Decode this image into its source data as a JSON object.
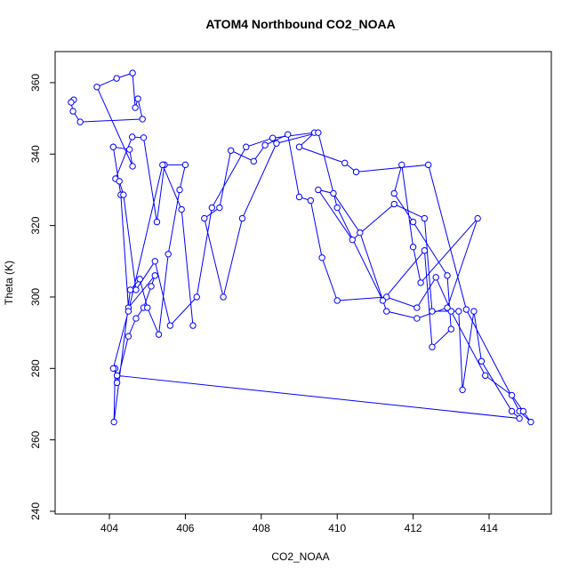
{
  "chart_data": {
    "type": "line",
    "title": "ATOM4 Northbound CO2_NOAA",
    "x_label": "CO2_NOAA",
    "y_label": "Theta (K)",
    "markers": true,
    "color": "#0000ff",
    "xlim": [
      402.57,
      415.64
    ],
    "ylim": [
      239.25,
      368.7
    ],
    "xticks": [
      404,
      406,
      408,
      410,
      412,
      414
    ],
    "yticks": [
      240,
      260,
      280,
      300,
      320,
      340,
      360
    ],
    "x": [
      403.06,
      402.99,
      403.04,
      403.23,
      404.87,
      404.75,
      404.68,
      404.61,
      404.19,
      403.67,
      404.61,
      404.53,
      404.1,
      404.3,
      404.5,
      405.2,
      405.1,
      404.9,
      404.7,
      404.5,
      404.2,
      404.15,
      404.12,
      404.55,
      404.8,
      405.0,
      405.3,
      405.55,
      405.85,
      406.0,
      405.45,
      405.25,
      404.9,
      404.6,
      404.16,
      404.26,
      404.37,
      404.7,
      405.2,
      405.6,
      406.3,
      406.7,
      407.6,
      408.3,
      409.4,
      409.0,
      410.2,
      410.5,
      412.4,
      413.4,
      414.8,
      415.1,
      414.9,
      414.6,
      413.9,
      413.0,
      412.6,
      412.1,
      411.3,
      410.0,
      409.6,
      409.3,
      409.0,
      408.7,
      408.1,
      407.8,
      407.2,
      406.9,
      406.5,
      407.0,
      407.5,
      408.4,
      409.5,
      410.0,
      411.2,
      412.3,
      412.5,
      413.0,
      412.9,
      412.0,
      411.5,
      411.7,
      412.0,
      412.2,
      413.7,
      412.9,
      412.1,
      411.3,
      410.6,
      409.9,
      409.5,
      410.4,
      411.5,
      412.3,
      412.5,
      413.2,
      413.3,
      413.6,
      413.8,
      414.6,
      414.8,
      404.2,
      404.1,
      404.5,
      405.4,
      405.9,
      406.2
    ],
    "y": [
      355.2,
      354.5,
      352,
      349,
      349.8,
      355.5,
      353,
      362.7,
      361.2,
      358.8,
      336.6,
      341.3,
      342,
      328.6,
      297,
      306,
      303,
      297,
      294,
      289,
      276,
      280,
      265,
      302,
      305,
      297,
      289.5,
      312,
      330,
      337,
      337,
      321,
      344.6,
      344.8,
      333.1,
      332.4,
      328.6,
      302,
      310,
      292,
      300,
      325,
      342,
      344.5,
      346,
      342,
      337.5,
      335,
      337,
      296.5,
      268,
      265,
      268,
      272.5,
      278,
      296,
      305.5,
      297,
      300,
      299,
      311,
      327,
      328,
      345.5,
      342.5,
      338,
      341,
      325,
      322,
      300,
      322,
      343,
      346,
      325,
      299,
      313,
      286,
      291,
      306,
      321,
      329,
      337,
      314,
      304,
      322,
      297,
      294,
      296,
      318,
      329,
      330,
      316,
      326,
      322,
      296,
      296,
      274,
      296,
      282,
      268,
      266,
      278,
      280,
      296,
      337,
      324.5,
      292
    ]
  }
}
